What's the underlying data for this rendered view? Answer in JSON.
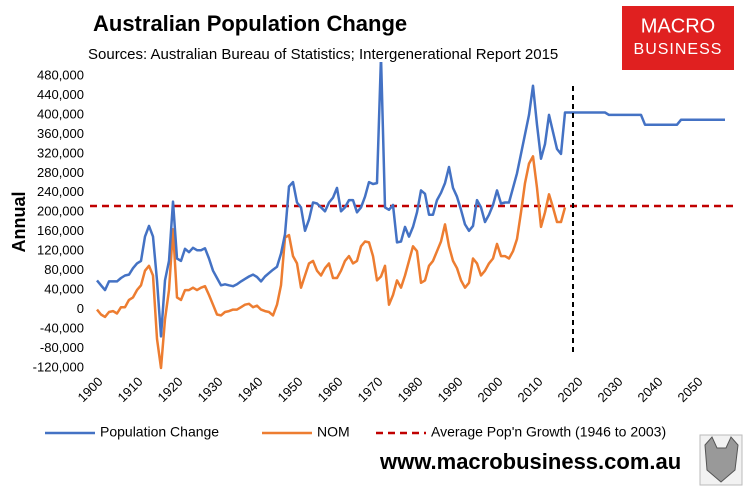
{
  "chart_data": {
    "type": "line",
    "title": "Australian Population Change",
    "subtitle": "Sources: Australian Bureau of Statistics; Intergenerational Report 2015",
    "y_label": "Annual",
    "website": "www.macrobusiness.com.au",
    "logo": [
      "MACRO",
      "BUSINESS"
    ],
    "xlim": [
      1900,
      2058
    ],
    "ylim": [
      -120000,
      480000
    ],
    "xticks": [
      1900,
      1910,
      1920,
      1930,
      1940,
      1950,
      1960,
      1970,
      1980,
      1990,
      2000,
      2010,
      2020,
      2030,
      2040,
      2050
    ],
    "yticks": [
      {
        "value": -120000,
        "label": "-120,000"
      },
      {
        "value": -80000,
        "label": "-80,000"
      },
      {
        "value": -40000,
        "label": "-40,000"
      },
      0,
      {
        "value": 40000,
        "label": "40,000"
      },
      {
        "value": 80000,
        "label": "80,000"
      },
      {
        "value": 120000,
        "label": "120,000"
      },
      {
        "value": 160000,
        "label": "160,000"
      },
      {
        "value": 200000,
        "label": "200,000"
      },
      {
        "value": 240000,
        "label": "240,000"
      },
      {
        "value": 280000,
        "label": "280,000"
      },
      {
        "value": 320000,
        "label": "320,000"
      },
      {
        "value": 360000,
        "label": "360,000"
      },
      {
        "value": 400000,
        "label": "400,000"
      },
      {
        "value": 440000,
        "label": "440,000"
      },
      {
        "value": 480000,
        "label": "480,000"
      }
    ],
    "grid": false,
    "x": [
      1900,
      1901,
      1902,
      1903,
      1904,
      1905,
      1906,
      1907,
      1908,
      1909,
      1910,
      1911,
      1912,
      1913,
      1914,
      1915,
      1916,
      1917,
      1918,
      1919,
      1920,
      1921,
      1922,
      1923,
      1924,
      1925,
      1926,
      1927,
      1928,
      1929,
      1930,
      1931,
      1932,
      1933,
      1934,
      1935,
      1936,
      1937,
      1938,
      1939,
      1940,
      1941,
      1942,
      1943,
      1944,
      1945,
      1946,
      1947,
      1948,
      1949,
      1950,
      1951,
      1952,
      1953,
      1954,
      1955,
      1956,
      1957,
      1958,
      1959,
      1960,
      1961,
      1962,
      1963,
      1964,
      1965,
      1966,
      1967,
      1968,
      1969,
      1970,
      1971,
      1972,
      1973,
      1974,
      1975,
      1976,
      1977,
      1978,
      1979,
      1980,
      1981,
      1982,
      1983,
      1984,
      1985,
      1986,
      1987,
      1988,
      1989,
      1990,
      1991,
      1992,
      1993,
      1994,
      1995,
      1996,
      1997,
      1998,
      1999,
      2000,
      2001,
      2002,
      2003,
      2004,
      2005,
      2006,
      2007,
      2008,
      2009,
      2010,
      2011,
      2012,
      2013,
      2014,
      2015,
      2016,
      2017,
      2018,
      2019,
      2020,
      2021,
      2022,
      2023,
      2024,
      2025,
      2026,
      2027,
      2028,
      2029,
      2030,
      2031,
      2032,
      2033,
      2034,
      2035,
      2036,
      2037,
      2038,
      2039,
      2040,
      2041,
      2042,
      2043,
      2044,
      2045,
      2046,
      2047,
      2048,
      2049,
      2050,
      2051,
      2052,
      2053,
      2054,
      2055,
      2056,
      2057
    ],
    "series": [
      {
        "name": "Population Change",
        "color": "#4472c4",
        "values": [
          60000,
          50000,
          40000,
          58000,
          58000,
          58000,
          65000,
          70000,
          72000,
          85000,
          95000,
          100000,
          150000,
          172000,
          150000,
          60000,
          -55000,
          60000,
          100000,
          222000,
          105000,
          100000,
          125000,
          118000,
          127000,
          122000,
          122000,
          126000,
          105000,
          80000,
          65000,
          50000,
          52000,
          50000,
          48000,
          52000,
          58000,
          63000,
          68000,
          72000,
          67000,
          58000,
          68000,
          75000,
          82000,
          88000,
          115000,
          155000,
          253000,
          262000,
          220000,
          210000,
          162000,
          185000,
          220000,
          218000,
          210000,
          202000,
          220000,
          230000,
          250000,
          202000,
          210000,
          225000,
          225000,
          200000,
          210000,
          232000,
          262000,
          258000,
          260000,
          520000,
          210000,
          205000,
          215000,
          138000,
          140000,
          170000,
          150000,
          170000,
          200000,
          245000,
          238000,
          195000,
          195000,
          225000,
          240000,
          260000,
          293000,
          250000,
          232000,
          205000,
          175000,
          162000,
          172000,
          225000,
          210000,
          180000,
          195000,
          215000,
          245000,
          218000,
          220000,
          220000,
          250000,
          280000,
          320000,
          360000,
          400000,
          460000,
          380000,
          310000,
          340000,
          400000,
          365000,
          330000,
          320000,
          405000,
          405000,
          405000,
          405000,
          405000,
          405000,
          405000,
          405000,
          405000,
          405000,
          405000,
          400000,
          400000,
          400000,
          400000,
          400000,
          400000,
          400000,
          400000,
          400000,
          380000,
          380000,
          380000,
          380000,
          380000,
          380000,
          380000,
          380000,
          380000,
          390000,
          390000,
          390000,
          390000,
          390000,
          390000,
          390000,
          390000,
          390000,
          390000,
          390000,
          390000
        ]
      },
      {
        "name": "NOM",
        "color": "#ed7d31",
        "values": [
          0,
          -10000,
          -15000,
          -5000,
          -3000,
          -8000,
          5000,
          5000,
          20000,
          25000,
          40000,
          50000,
          80000,
          90000,
          70000,
          -60000,
          -120000,
          -20000,
          40000,
          165000,
          25000,
          20000,
          40000,
          40000,
          45000,
          40000,
          45000,
          48000,
          30000,
          10000,
          -10000,
          -12000,
          -5000,
          -3000,
          0,
          0,
          5000,
          10000,
          12000,
          5000,
          8000,
          0,
          -3000,
          -5000,
          -12000,
          10000,
          50000,
          148000,
          153000,
          110000,
          95000,
          45000,
          70000,
          95000,
          100000,
          80000,
          70000,
          85000,
          95000,
          65000,
          65000,
          80000,
          100000,
          110000,
          95000,
          100000,
          130000,
          140000,
          138000,
          110000,
          60000,
          68000,
          90000,
          10000,
          30000,
          60000,
          45000,
          70000,
          100000,
          130000,
          120000,
          55000,
          60000,
          90000,
          100000,
          120000,
          140000,
          175000,
          130000,
          100000,
          85000,
          60000,
          45000,
          55000,
          105000,
          95000,
          70000,
          80000,
          95000,
          105000,
          135000,
          110000,
          110000,
          105000,
          120000,
          145000,
          200000,
          260000,
          300000,
          315000,
          250000,
          170000,
          200000,
          237000,
          210000,
          180000,
          180000,
          210000,
          null,
          null,
          null,
          null,
          null,
          null,
          null,
          null,
          null,
          null,
          null,
          null,
          null,
          null,
          null,
          null,
          null,
          null,
          null,
          null,
          null,
          null,
          null,
          null,
          null,
          null,
          null,
          null,
          null,
          null,
          null,
          null,
          null,
          null,
          null,
          null,
          null,
          null,
          null,
          null
        ]
      }
    ],
    "reference_line": {
      "name": "Average Pop'n Growth (1946 to 2003)",
      "value": 213000,
      "color": "#c00000"
    },
    "projection_line": {
      "x": 2019,
      "color": "#000000"
    }
  }
}
